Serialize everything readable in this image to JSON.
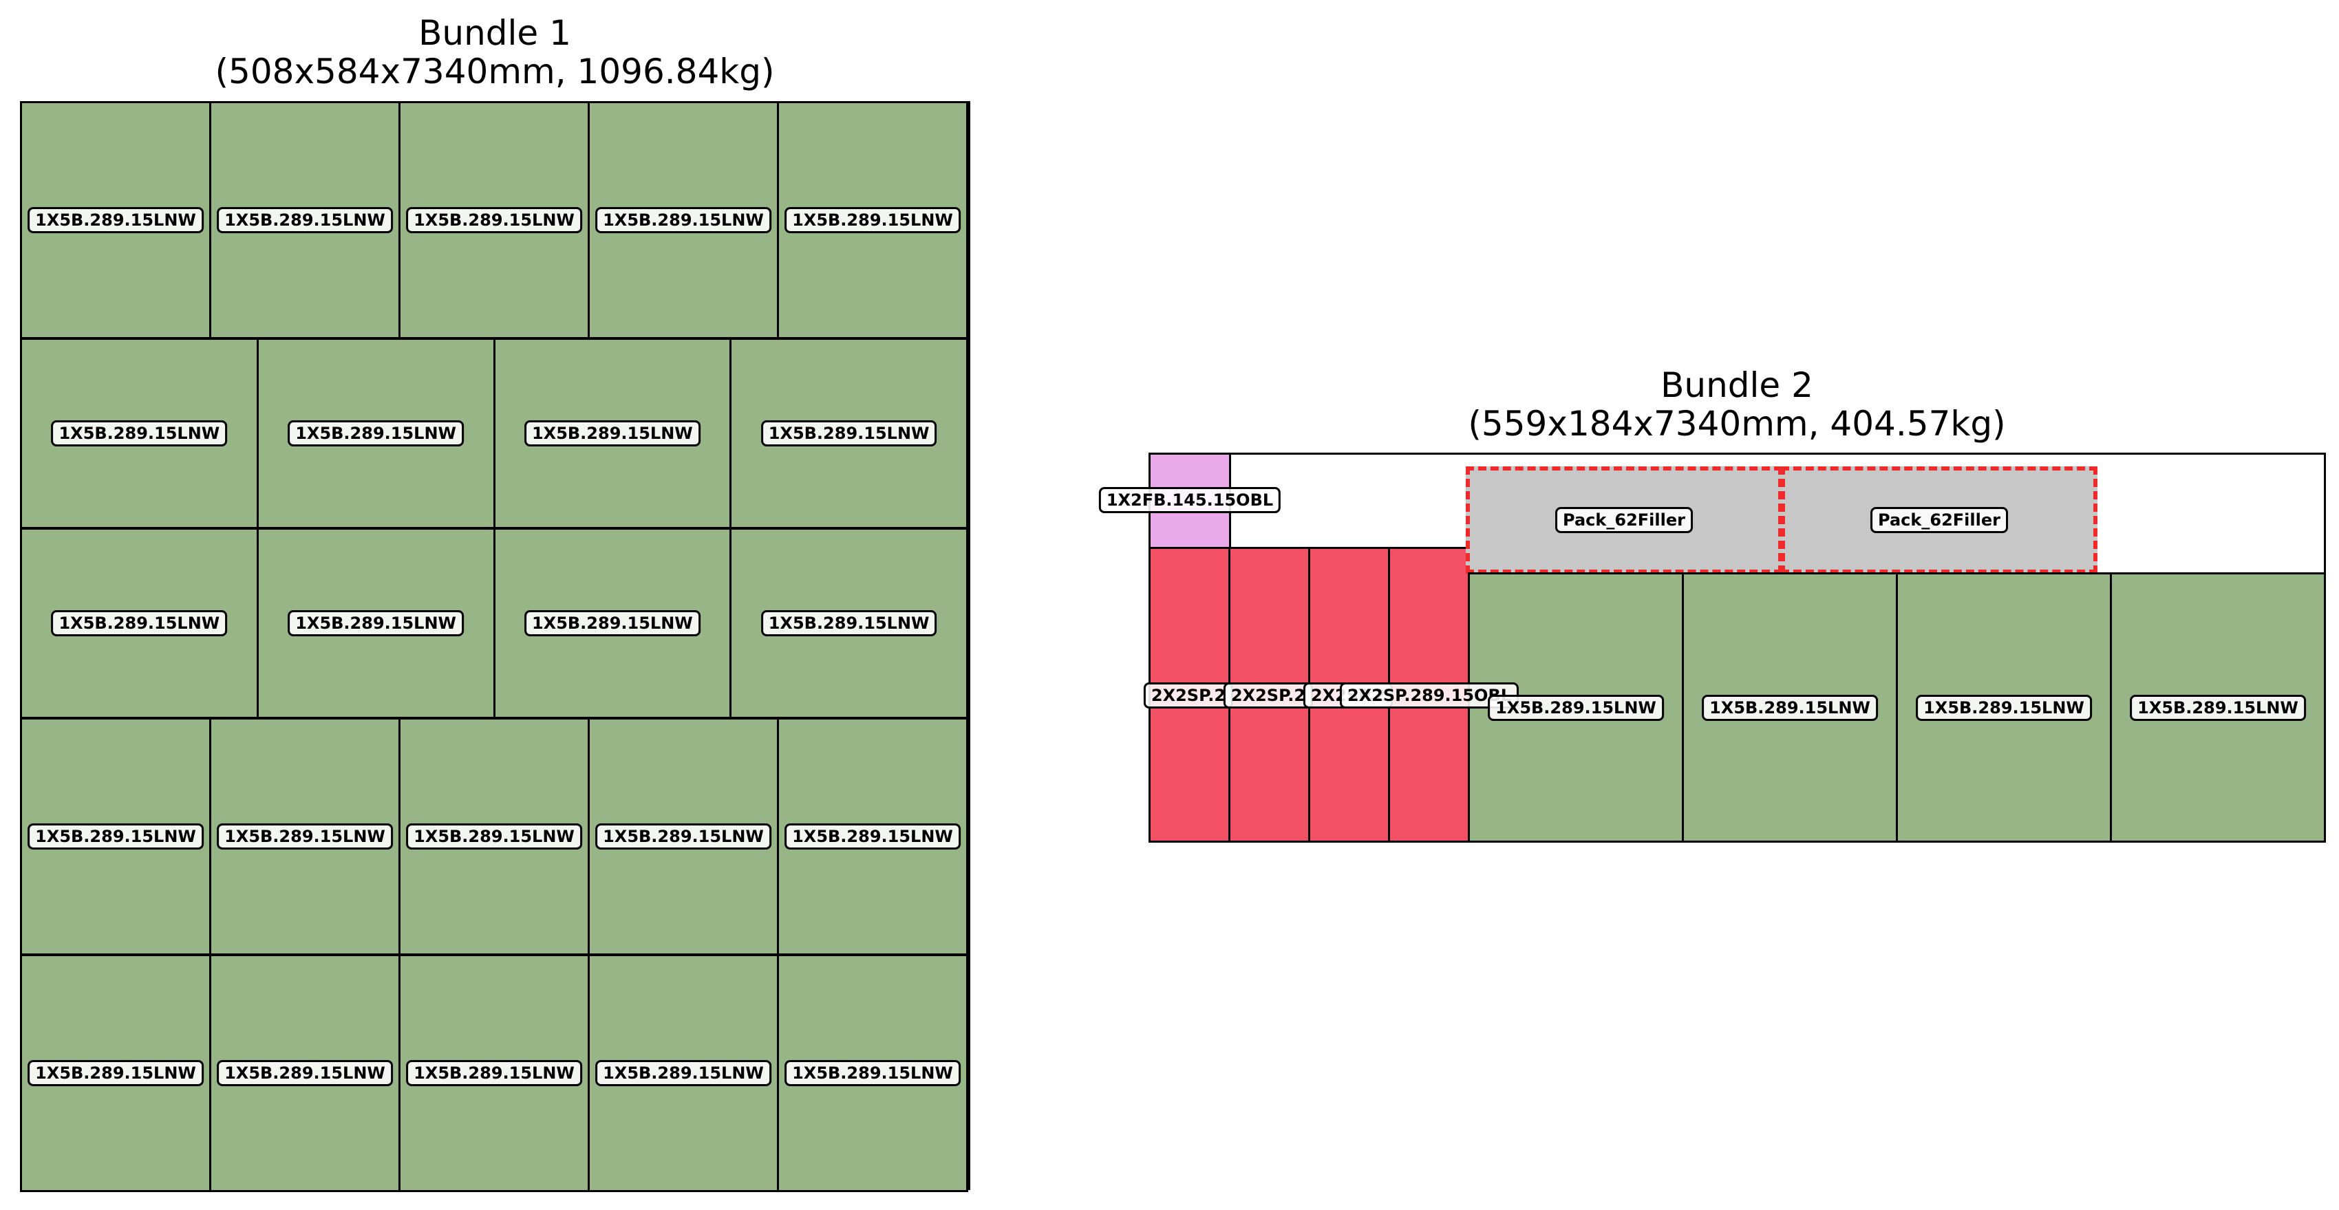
{
  "bundles": [
    {
      "title": "Bundle 1",
      "subtitle": "(508x584x7340mm, 1096.84kg)",
      "rows": [
        {
          "packs": [
            "1X5B.289.15LNW",
            "1X5B.289.15LNW",
            "1X5B.289.15LNW",
            "1X5B.289.15LNW",
            "1X5B.289.15LNW"
          ]
        },
        {
          "packs": [
            "1X5B.289.15LNW",
            "1X5B.289.15LNW",
            "1X5B.289.15LNW",
            "1X5B.289.15LNW"
          ]
        },
        {
          "packs": [
            "1X5B.289.15LNW",
            "1X5B.289.15LNW",
            "1X5B.289.15LNW",
            "1X5B.289.15LNW"
          ]
        },
        {
          "packs": [
            "1X5B.289.15LNW",
            "1X5B.289.15LNW",
            "1X5B.289.15LNW",
            "1X5B.289.15LNW",
            "1X5B.289.15LNW"
          ]
        },
        {
          "packs": [
            "1X5B.289.15LNW",
            "1X5B.289.15LNW",
            "1X5B.289.15LNW",
            "1X5B.289.15LNW",
            "1X5B.289.15LNW"
          ]
        }
      ]
    },
    {
      "title": "Bundle 2",
      "subtitle": "(559x184x7340mm, 404.57kg)",
      "top_pack": "1X2FB.145.15OBL",
      "red_packs": [
        "2X2SP.2",
        "2X2SP.2",
        "2X2SP.2",
        "2X2SP.289.15OBL"
      ],
      "filler_packs": [
        "Pack_62Filler",
        "Pack_62Filler"
      ],
      "green_packs": [
        "1X5B.289.15LNW",
        "1X5B.289.15LNW",
        "1X5B.289.15LNW",
        "1X5B.289.15LNW"
      ]
    }
  ],
  "colors": {
    "green_pack": "#98b587",
    "pink_pack": "#eaa9e8",
    "red_pack": "#f25065",
    "filler_pack": "#c7c7c7",
    "filler_border": "#ee2a2a"
  }
}
